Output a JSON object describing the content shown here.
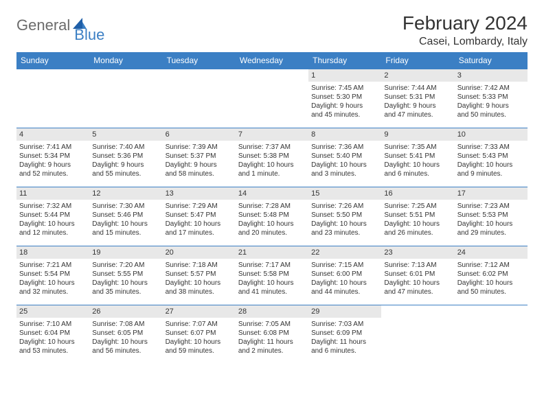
{
  "logo": {
    "text1": "General",
    "text2": "Blue"
  },
  "title": "February 2024",
  "location": "Casei, Lombardy, Italy",
  "colors": {
    "header_bg": "#3b7fc4",
    "header_text": "#ffffff",
    "border": "#3b7fc4",
    "daynum_bg": "#e8e8e8",
    "text": "#333333",
    "logo_gray": "#6b6b6b",
    "logo_blue": "#3b7fc4",
    "page_bg": "#ffffff"
  },
  "day_headers": [
    "Sunday",
    "Monday",
    "Tuesday",
    "Wednesday",
    "Thursday",
    "Friday",
    "Saturday"
  ],
  "weeks": [
    [
      null,
      null,
      null,
      null,
      {
        "n": "1",
        "sr": "Sunrise: 7:45 AM",
        "ss": "Sunset: 5:30 PM",
        "d1": "Daylight: 9 hours",
        "d2": "and 45 minutes."
      },
      {
        "n": "2",
        "sr": "Sunrise: 7:44 AM",
        "ss": "Sunset: 5:31 PM",
        "d1": "Daylight: 9 hours",
        "d2": "and 47 minutes."
      },
      {
        "n": "3",
        "sr": "Sunrise: 7:42 AM",
        "ss": "Sunset: 5:33 PM",
        "d1": "Daylight: 9 hours",
        "d2": "and 50 minutes."
      }
    ],
    [
      {
        "n": "4",
        "sr": "Sunrise: 7:41 AM",
        "ss": "Sunset: 5:34 PM",
        "d1": "Daylight: 9 hours",
        "d2": "and 52 minutes."
      },
      {
        "n": "5",
        "sr": "Sunrise: 7:40 AM",
        "ss": "Sunset: 5:36 PM",
        "d1": "Daylight: 9 hours",
        "d2": "and 55 minutes."
      },
      {
        "n": "6",
        "sr": "Sunrise: 7:39 AM",
        "ss": "Sunset: 5:37 PM",
        "d1": "Daylight: 9 hours",
        "d2": "and 58 minutes."
      },
      {
        "n": "7",
        "sr": "Sunrise: 7:37 AM",
        "ss": "Sunset: 5:38 PM",
        "d1": "Daylight: 10 hours",
        "d2": "and 1 minute."
      },
      {
        "n": "8",
        "sr": "Sunrise: 7:36 AM",
        "ss": "Sunset: 5:40 PM",
        "d1": "Daylight: 10 hours",
        "d2": "and 3 minutes."
      },
      {
        "n": "9",
        "sr": "Sunrise: 7:35 AM",
        "ss": "Sunset: 5:41 PM",
        "d1": "Daylight: 10 hours",
        "d2": "and 6 minutes."
      },
      {
        "n": "10",
        "sr": "Sunrise: 7:33 AM",
        "ss": "Sunset: 5:43 PM",
        "d1": "Daylight: 10 hours",
        "d2": "and 9 minutes."
      }
    ],
    [
      {
        "n": "11",
        "sr": "Sunrise: 7:32 AM",
        "ss": "Sunset: 5:44 PM",
        "d1": "Daylight: 10 hours",
        "d2": "and 12 minutes."
      },
      {
        "n": "12",
        "sr": "Sunrise: 7:30 AM",
        "ss": "Sunset: 5:46 PM",
        "d1": "Daylight: 10 hours",
        "d2": "and 15 minutes."
      },
      {
        "n": "13",
        "sr": "Sunrise: 7:29 AM",
        "ss": "Sunset: 5:47 PM",
        "d1": "Daylight: 10 hours",
        "d2": "and 17 minutes."
      },
      {
        "n": "14",
        "sr": "Sunrise: 7:28 AM",
        "ss": "Sunset: 5:48 PM",
        "d1": "Daylight: 10 hours",
        "d2": "and 20 minutes."
      },
      {
        "n": "15",
        "sr": "Sunrise: 7:26 AM",
        "ss": "Sunset: 5:50 PM",
        "d1": "Daylight: 10 hours",
        "d2": "and 23 minutes."
      },
      {
        "n": "16",
        "sr": "Sunrise: 7:25 AM",
        "ss": "Sunset: 5:51 PM",
        "d1": "Daylight: 10 hours",
        "d2": "and 26 minutes."
      },
      {
        "n": "17",
        "sr": "Sunrise: 7:23 AM",
        "ss": "Sunset: 5:53 PM",
        "d1": "Daylight: 10 hours",
        "d2": "and 29 minutes."
      }
    ],
    [
      {
        "n": "18",
        "sr": "Sunrise: 7:21 AM",
        "ss": "Sunset: 5:54 PM",
        "d1": "Daylight: 10 hours",
        "d2": "and 32 minutes."
      },
      {
        "n": "19",
        "sr": "Sunrise: 7:20 AM",
        "ss": "Sunset: 5:55 PM",
        "d1": "Daylight: 10 hours",
        "d2": "and 35 minutes."
      },
      {
        "n": "20",
        "sr": "Sunrise: 7:18 AM",
        "ss": "Sunset: 5:57 PM",
        "d1": "Daylight: 10 hours",
        "d2": "and 38 minutes."
      },
      {
        "n": "21",
        "sr": "Sunrise: 7:17 AM",
        "ss": "Sunset: 5:58 PM",
        "d1": "Daylight: 10 hours",
        "d2": "and 41 minutes."
      },
      {
        "n": "22",
        "sr": "Sunrise: 7:15 AM",
        "ss": "Sunset: 6:00 PM",
        "d1": "Daylight: 10 hours",
        "d2": "and 44 minutes."
      },
      {
        "n": "23",
        "sr": "Sunrise: 7:13 AM",
        "ss": "Sunset: 6:01 PM",
        "d1": "Daylight: 10 hours",
        "d2": "and 47 minutes."
      },
      {
        "n": "24",
        "sr": "Sunrise: 7:12 AM",
        "ss": "Sunset: 6:02 PM",
        "d1": "Daylight: 10 hours",
        "d2": "and 50 minutes."
      }
    ],
    [
      {
        "n": "25",
        "sr": "Sunrise: 7:10 AM",
        "ss": "Sunset: 6:04 PM",
        "d1": "Daylight: 10 hours",
        "d2": "and 53 minutes."
      },
      {
        "n": "26",
        "sr": "Sunrise: 7:08 AM",
        "ss": "Sunset: 6:05 PM",
        "d1": "Daylight: 10 hours",
        "d2": "and 56 minutes."
      },
      {
        "n": "27",
        "sr": "Sunrise: 7:07 AM",
        "ss": "Sunset: 6:07 PM",
        "d1": "Daylight: 10 hours",
        "d2": "and 59 minutes."
      },
      {
        "n": "28",
        "sr": "Sunrise: 7:05 AM",
        "ss": "Sunset: 6:08 PM",
        "d1": "Daylight: 11 hours",
        "d2": "and 2 minutes."
      },
      {
        "n": "29",
        "sr": "Sunrise: 7:03 AM",
        "ss": "Sunset: 6:09 PM",
        "d1": "Daylight: 11 hours",
        "d2": "and 6 minutes."
      },
      null,
      null
    ]
  ]
}
